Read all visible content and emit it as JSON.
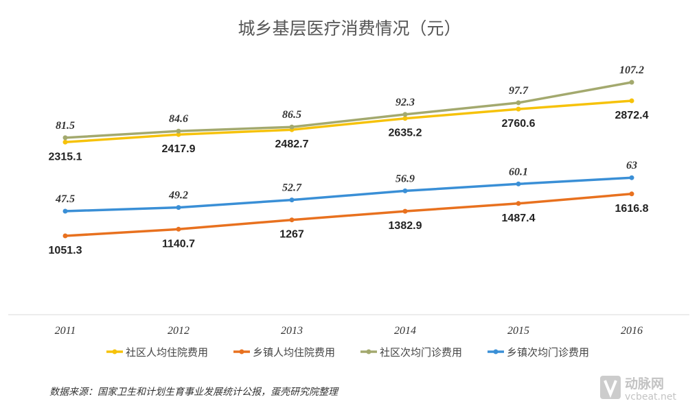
{
  "chart_data": {
    "type": "line",
    "title": "城乡基层医疗消费情况（元）",
    "categories": [
      "2011",
      "2012",
      "2013",
      "2014",
      "2015",
      "2016"
    ],
    "series": [
      {
        "name": "社区人均住院费用",
        "color": "#f6c20a",
        "values": [
          2315.1,
          2417.9,
          2482.7,
          2635.2,
          2760.6,
          2872.4
        ],
        "label_style": "bold-below"
      },
      {
        "name": "乡镇人均住院费用",
        "color": "#e8711f",
        "values": [
          1051.3,
          1140.7,
          1267,
          1382.9,
          1487.4,
          1616.8
        ],
        "label_style": "bold-below"
      },
      {
        "name": "社区次均门诊费用",
        "color": "#a3a96e",
        "values": [
          81.5,
          84.6,
          86.5,
          92.3,
          97.7,
          107.2
        ],
        "label_style": "italic-above"
      },
      {
        "name": "乡镇次均门诊费用",
        "color": "#3a8fd6",
        "values": [
          47.5,
          49.2,
          52.7,
          56.9,
          60.1,
          63
        ],
        "label_style": "italic-above"
      }
    ],
    "grid": false,
    "legend_position": "bottom"
  },
  "source": "数据来源：国家卫生和计划生育事业发展统计公报，蛋壳研究院整理",
  "watermark": {
    "brand": "动脉网",
    "url": "vcbeat.net"
  }
}
